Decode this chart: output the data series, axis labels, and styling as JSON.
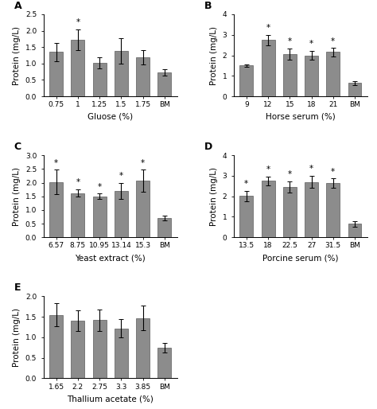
{
  "panels": [
    {
      "label": "A",
      "xlabel": "Gluose (%)",
      "categories": [
        "0.75",
        "1",
        "1.25",
        "1.5",
        "1.75",
        "BM"
      ],
      "values": [
        1.35,
        1.73,
        1.02,
        1.38,
        1.18,
        0.72
      ],
      "errors": [
        0.28,
        0.32,
        0.18,
        0.38,
        0.22,
        0.1
      ],
      "stars": [
        false,
        true,
        false,
        false,
        false,
        false
      ],
      "ylim": [
        0,
        2.5
      ],
      "yticks": [
        0.0,
        0.5,
        1.0,
        1.5,
        2.0,
        2.5
      ]
    },
    {
      "label": "B",
      "xlabel": "Horse serum (%)",
      "categories": [
        "9",
        "12",
        "15",
        "18",
        "21",
        "BM"
      ],
      "values": [
        1.5,
        2.75,
        2.06,
        2.0,
        2.16,
        0.65
      ],
      "errors": [
        0.07,
        0.25,
        0.28,
        0.22,
        0.2,
        0.1
      ],
      "stars": [
        false,
        true,
        true,
        true,
        true,
        false
      ],
      "ylim": [
        0,
        4.0
      ],
      "yticks": [
        0.0,
        1.0,
        2.0,
        3.0,
        4.0
      ]
    },
    {
      "label": "C",
      "xlabel": "Yeast extract (%)",
      "categories": [
        "6.57",
        "8.75",
        "10.95",
        "13.14",
        "15.3",
        "BM"
      ],
      "values": [
        2.02,
        1.62,
        1.5,
        1.7,
        2.07,
        0.7
      ],
      "errors": [
        0.45,
        0.14,
        0.1,
        0.3,
        0.4,
        0.08
      ],
      "stars": [
        true,
        true,
        true,
        true,
        true,
        false
      ],
      "ylim": [
        0,
        3.0
      ],
      "yticks": [
        0.0,
        0.5,
        1.0,
        1.5,
        2.0,
        2.5,
        3.0
      ]
    },
    {
      "label": "D",
      "xlabel": "Porcine serum (%)",
      "categories": [
        "13.5",
        "18",
        "22.5",
        "27",
        "31.5",
        "BM"
      ],
      "values": [
        2.02,
        2.75,
        2.45,
        2.7,
        2.65,
        0.65
      ],
      "errors": [
        0.25,
        0.22,
        0.28,
        0.3,
        0.22,
        0.12
      ],
      "stars": [
        true,
        true,
        true,
        true,
        true,
        false
      ],
      "ylim": [
        0,
        4.0
      ],
      "yticks": [
        0.0,
        1.0,
        2.0,
        3.0,
        4.0
      ]
    },
    {
      "label": "E",
      "xlabel": "Thallium acetate (%)",
      "categories": [
        "1.65",
        "2.2",
        "2.75",
        "3.3",
        "3.85",
        "BM"
      ],
      "values": [
        1.55,
        1.4,
        1.42,
        1.22,
        1.47,
        0.75
      ],
      "errors": [
        0.28,
        0.25,
        0.26,
        0.22,
        0.3,
        0.12
      ],
      "stars": [
        false,
        false,
        false,
        false,
        false,
        false
      ],
      "ylim": [
        0,
        2.0
      ],
      "yticks": [
        0.0,
        0.5,
        1.0,
        1.5,
        2.0
      ]
    }
  ],
  "bar_color": "#8c8c8c",
  "bar_edgecolor": "#5a5a5a",
  "ylabel": "Protein (mg/L)",
  "bar_width": 0.62,
  "tick_fontsize": 6.5,
  "label_fontsize": 7.5,
  "panel_label_fontsize": 9
}
